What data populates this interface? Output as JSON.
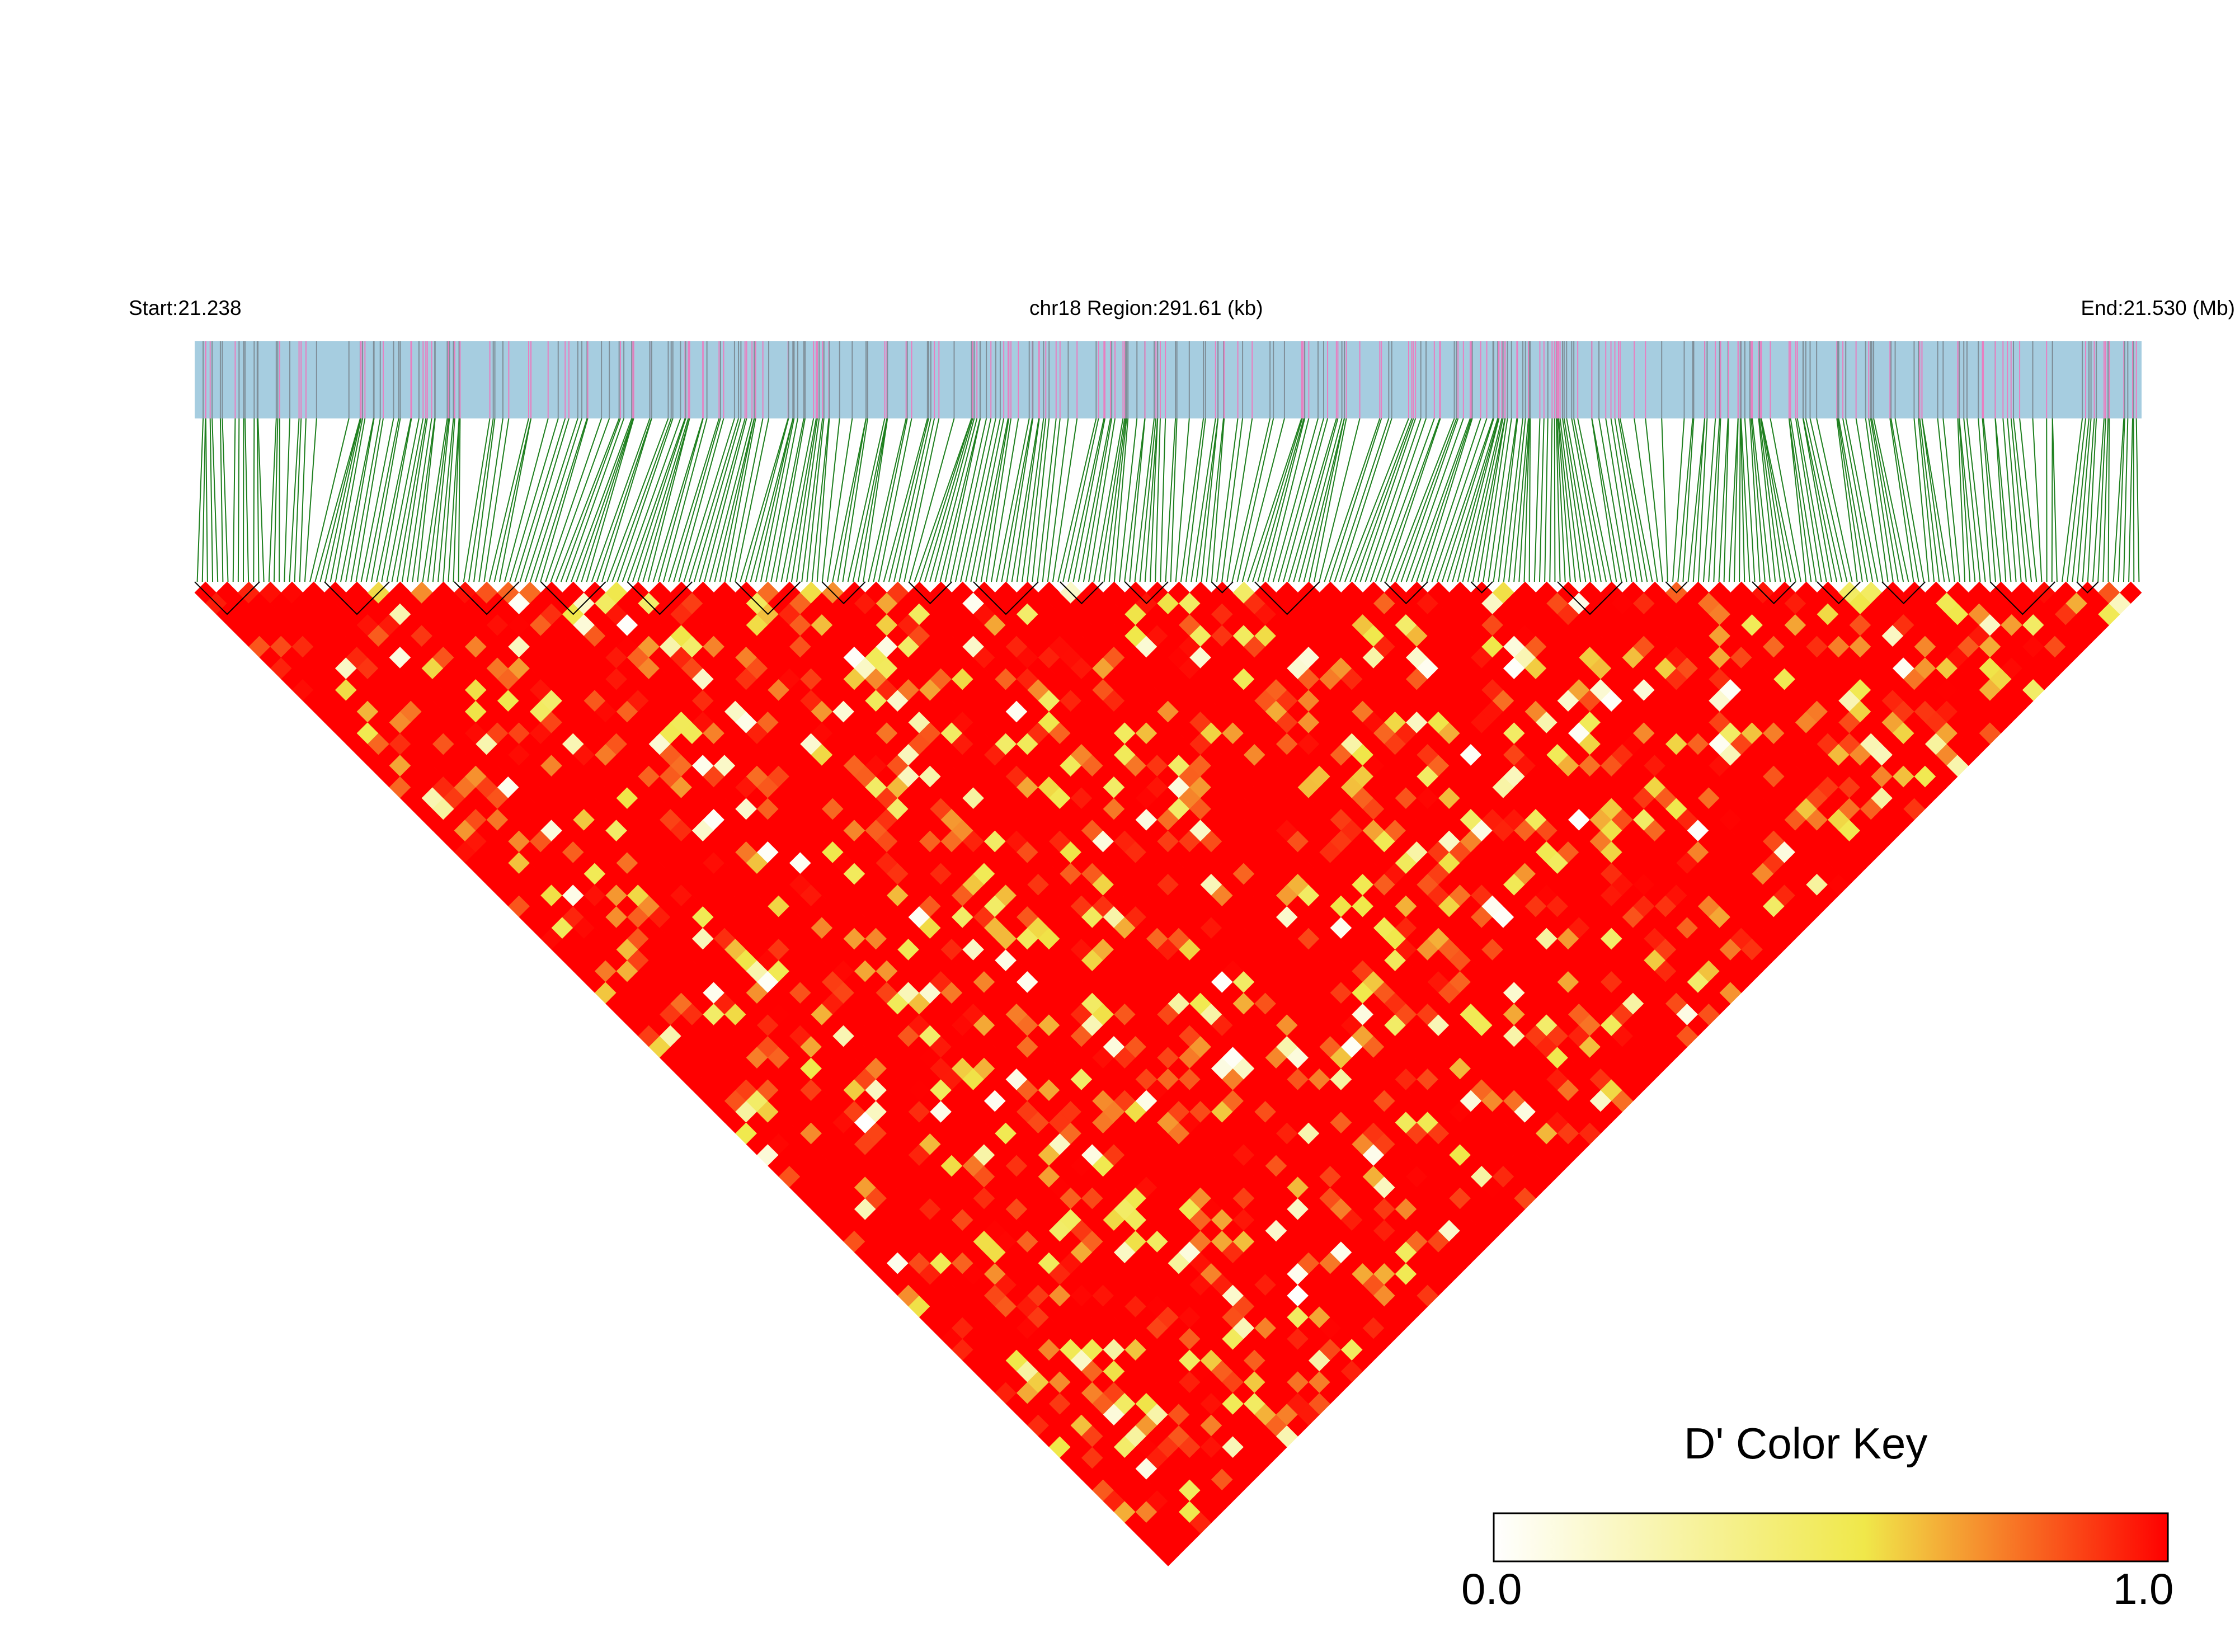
{
  "header": {
    "start_label": "Start:21.238",
    "region_label": "chr18 Region:291.61 (kb)",
    "end_label": "End:21.530 (Mb)"
  },
  "color_key": {
    "title": "D' Color Key",
    "min_label": "0.0",
    "max_label": "1.0",
    "colors": [
      "#ffffff",
      "#f2e84a",
      "#ff0000"
    ]
  },
  "track_colors": {
    "background": "#a6cde0",
    "variant_a": "#7f8f99",
    "variant_b": "#e87fc0",
    "link_lines": "#1e7f1e",
    "block_outline": "#000000"
  },
  "chart_data": {
    "type": "heatmap",
    "title": "",
    "chromosome": "chr18",
    "start_mb": 21.238,
    "end_mb": 21.53,
    "region_kb": 291.61,
    "metric": "D'",
    "value_range": [
      0.0,
      1.0
    ],
    "dominant_value": 1.0,
    "snp_count_approx": 380,
    "ld_blocks_count_approx": 24
  }
}
